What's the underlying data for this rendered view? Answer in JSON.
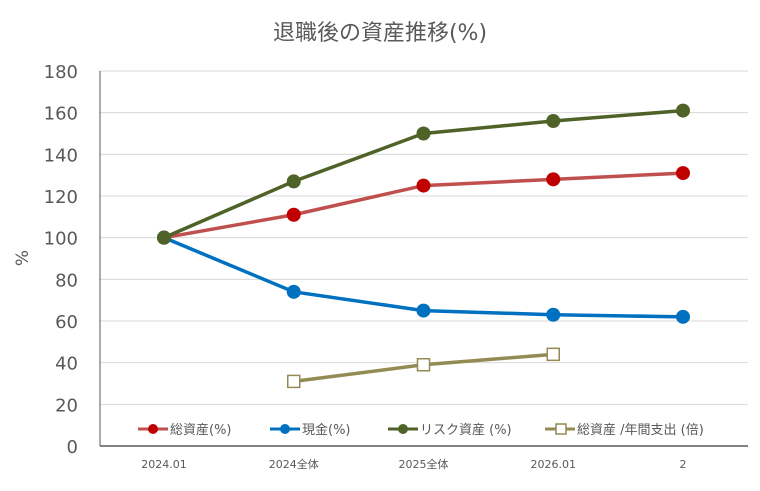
{
  "chart_data": {
    "type": "line",
    "title": "退職後の資産推移(%)",
    "xlabel": "",
    "ylabel": "%",
    "ylim": [
      0,
      180
    ],
    "yticks": [
      0,
      20,
      40,
      60,
      80,
      100,
      120,
      140,
      160,
      180
    ],
    "grid": true,
    "legend_position": "bottom-inside",
    "categories": [
      "2024.01",
      "2024全体",
      "2025全体",
      "2026.01",
      "2"
    ],
    "series": [
      {
        "name": "総資産(%)",
        "color": "#C0504D",
        "marker_color": "#C00000",
        "marker": "circle",
        "values": [
          100,
          111,
          125,
          128,
          131
        ]
      },
      {
        "name": "現金(%)",
        "color": "#0070C0",
        "marker_color": "#0070C0",
        "marker": "circle",
        "values": [
          100,
          74,
          65,
          63,
          62
        ]
      },
      {
        "name": "リスク資産 (%)",
        "color": "#4F6228",
        "marker_color": "#4F6228",
        "marker": "circle",
        "values": [
          100,
          127,
          150,
          156,
          161
        ]
      },
      {
        "name": "総資産 /年間支出 (倍)",
        "color": "#948A54",
        "marker_color": "#FFFFFF",
        "marker": "square",
        "values": [
          null,
          31,
          39,
          44,
          null
        ]
      }
    ]
  }
}
